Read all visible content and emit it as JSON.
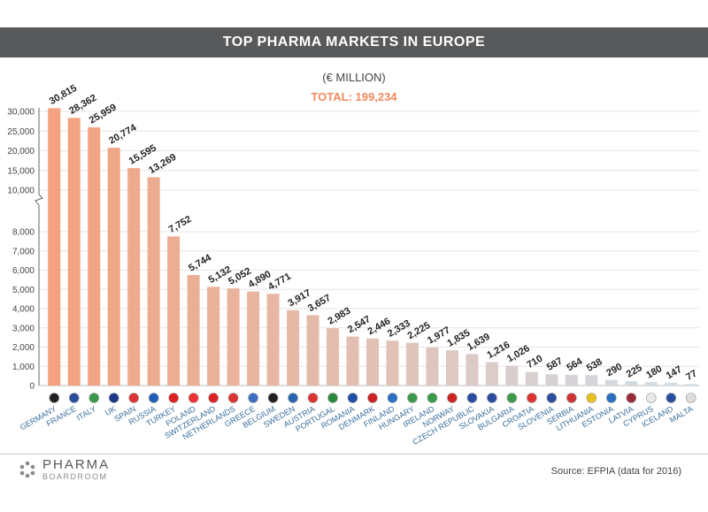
{
  "chart_data": {
    "type": "bar",
    "title": "TOP PHARMA MARKETS IN EUROPE",
    "subtitle": "(€ MILLION)",
    "total": "TOTAL: 199,234",
    "source": "Source: EFPIA (data for 2016)",
    "categories": [
      "GERMANY",
      "FRANCE",
      "ITALY",
      "UK",
      "SPAIN",
      "RUSSIA",
      "TURKEY",
      "POLAND",
      "SWITZERLAND",
      "NETHERLANDS",
      "GREECE",
      "BELGIUM",
      "SWEDEN",
      "AUSTRIA",
      "PORTUGAL",
      "ROMANIA",
      "DENMARK",
      "FINLAND",
      "HUNGARY",
      "IRELAND",
      "NORWAY",
      "CZECH REPUBLIC",
      "SLOVAKIA",
      "BULGARIA",
      "CROATIA",
      "SLOVENIA",
      "SERBIA",
      "LITHUANIA",
      "ESTONIA",
      "LATVIA",
      "CYPRUS",
      "ICELAND",
      "MALTA"
    ],
    "values": [
      30815,
      28362,
      25959,
      20774,
      15595,
      13269,
      7752,
      5744,
      5132,
      5052,
      4890,
      4771,
      3917,
      3657,
      2983,
      2547,
      2446,
      2333,
      2225,
      1977,
      1835,
      1639,
      1216,
      1026,
      710,
      587,
      564,
      538,
      290,
      225,
      180,
      147,
      77
    ],
    "value_labels": [
      "30,815",
      "28,362",
      "25,959",
      "20,774",
      "15,595",
      "13,269",
      "7,752",
      "5,744",
      "5,132",
      "5,052",
      "4,890",
      "4,771",
      "3,917",
      "3,657",
      "2,983",
      "2,547",
      "2,446",
      "2,333",
      "2,225",
      "1,977",
      "1,835",
      "1,639",
      "1,216",
      "1,026",
      "710",
      "587",
      "564",
      "538",
      "290",
      "225",
      "180",
      "147",
      "77"
    ],
    "y_ticks": [
      "0",
      "1,000",
      "2,000",
      "3,000",
      "4,000",
      "5,000",
      "6,000",
      "7,000",
      "8,000",
      "10,000",
      "15,000",
      "20,000",
      "25,000",
      "30,000"
    ],
    "y_tick_values": [
      0,
      1000,
      2000,
      3000,
      4000,
      5000,
      6000,
      7000,
      8000,
      10000,
      15000,
      20000,
      25000,
      30000
    ],
    "y_scale": "broken axis: linear 0–8,000 below the break, compressed 10,000–30,000 above",
    "flags": [
      "germany-flag-icon",
      "france-flag-icon",
      "italy-flag-icon",
      "uk-flag-icon",
      "spain-flag-icon",
      "russia-flag-icon",
      "turkey-flag-icon",
      "poland-flag-icon",
      "switzerland-flag-icon",
      "netherlands-flag-icon",
      "greece-flag-icon",
      "belgium-flag-icon",
      "sweden-flag-icon",
      "austria-flag-icon",
      "portugal-flag-icon",
      "romania-flag-icon",
      "denmark-flag-icon",
      "finland-flag-icon",
      "hungary-flag-icon",
      "ireland-flag-icon",
      "norway-flag-icon",
      "czech-republic-flag-icon",
      "slovakia-flag-icon",
      "bulgaria-flag-icon",
      "croatia-flag-icon",
      "slovenia-flag-icon",
      "serbia-flag-icon",
      "lithuania-flag-icon",
      "estonia-flag-icon",
      "latvia-flag-icon",
      "cyprus-flag-icon",
      "iceland-flag-icon",
      "malta-flag-icon"
    ],
    "colors": {
      "gradient_start": "#f3a17e",
      "gradient_end": "#cfe0ea",
      "title_bar": "#58595b",
      "total_text": "#f08a5d",
      "category_text": "#3a6e9c"
    },
    "grid": true,
    "legend": "none"
  },
  "footer": {
    "logo_main": "PHARMA",
    "logo_sub": "BOARDROOM"
  }
}
